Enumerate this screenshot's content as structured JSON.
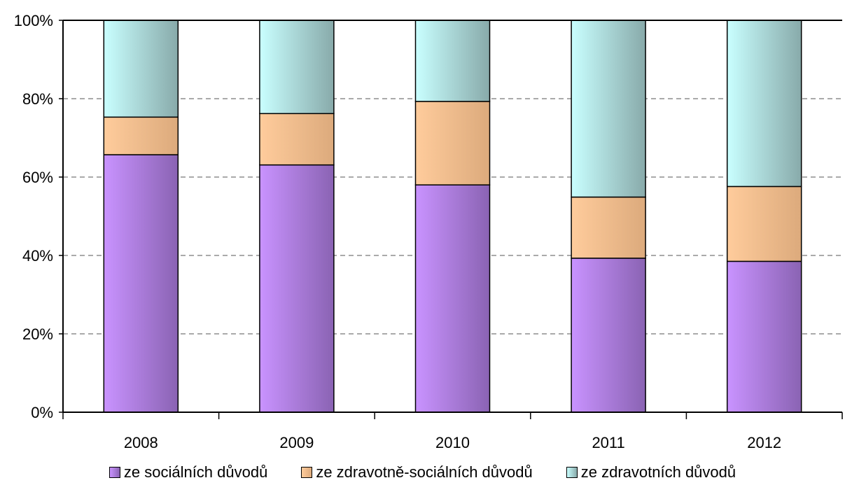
{
  "chart_data": {
    "type": "bar",
    "stacked": true,
    "percent_stacked": true,
    "categories": [
      "2008",
      "2009",
      "2010",
      "2011",
      "2012"
    ],
    "series": [
      {
        "name": "ze sociálních důvodů",
        "values": [
          65.7,
          63.1,
          58.0,
          39.3,
          38.5
        ],
        "color": "#b380e6"
      },
      {
        "name": "ze zdravotně-sociálních důvodů",
        "values": [
          9.6,
          13.1,
          21.3,
          15.6,
          19.1
        ],
        "color": "#f5c08f"
      },
      {
        "name": "ze zdravotních důvodů",
        "values": [
          24.7,
          23.8,
          20.7,
          45.1,
          42.4
        ],
        "color": "#a8dede"
      }
    ],
    "yticks": [
      "0%",
      "20%",
      "40%",
      "60%",
      "80%",
      "100%"
    ],
    "ylim": [
      0,
      100
    ],
    "grid": "horizontal dashed",
    "legend_position": "bottom",
    "title": "",
    "xlabel": "",
    "ylabel": ""
  }
}
